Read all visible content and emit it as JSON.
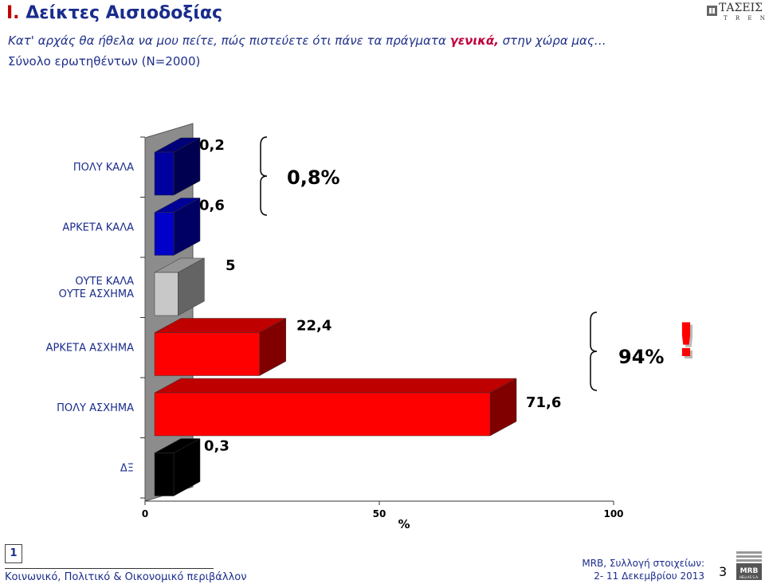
{
  "header": {
    "title_number": "I.",
    "title_text": "Δείκτες Αισιοδοξίας",
    "subtitle_pre": "Κατ' αρχάς θα ήθελα να μου πείτε, πώς πιστεύετε ότι πάνε τα πράγματα ",
    "subtitle_em": "γενικά,",
    "subtitle_post": " στην χώρα μας…",
    "sample": "Σύνολο ερωτηθέντων (Ν=2000)"
  },
  "logo": {
    "name": "ΤΑΣΕΙΣ",
    "sub": "T R E N D S",
    "icon": "tasis-trends-logo"
  },
  "chart_data": {
    "type": "bar",
    "orientation": "horizontal",
    "categories": [
      "ΠΟΛΥ ΚΑΛΑ",
      "ΑΡΚΕΤΑ ΚΑΛΑ",
      "ΟΥΤΕ ΚΑΛΑ ΟΥΤΕ ΑΣΧΗΜΑ",
      "ΑΡΚΕΤΑ ΑΣΧΗΜΑ",
      "ΠΟΛΥ ΑΣΧΗΜΑ",
      "ΔΞ"
    ],
    "values": [
      0.2,
      0.6,
      5,
      22.4,
      71.6,
      0.3
    ],
    "value_labels": [
      "0,2",
      "0,6",
      "5",
      "22,4",
      "71,6",
      "0,3"
    ],
    "colors": [
      "#0000a0",
      "#0000c8",
      "#c8c8c8",
      "#ff0000",
      "#ff0000",
      "#000000"
    ],
    "xlabel": "%",
    "xlim": [
      0,
      100
    ],
    "xticks": [
      "0",
      "50",
      "100"
    ],
    "annotations": [
      {
        "text": "0,8%",
        "groups": [
          "ΠΟΛΥ ΚΑΛΑ",
          "ΑΡΚΕΤΑ ΚΑΛΑ"
        ]
      },
      {
        "text": "94%",
        "groups": [
          "ΑΡΚΕΤΑ ΑΣΧΗΜΑ",
          "ΠΟΛΥ ΑΣΧΗΜΑ"
        ],
        "mark": "!"
      }
    ],
    "style": "3d"
  },
  "footer": {
    "page_box": "1",
    "left": "Κοινωνικό, Πολιτικό & Οικονομικό περιβάλλον",
    "right_line1": "MRB, Συλλογή στοιχείων:",
    "right_line2": "2- 11 Δεκεμβρίου 2013",
    "slide_number": "3",
    "logo_text": "MRB",
    "logo_sub": "HELLAS S.A."
  }
}
